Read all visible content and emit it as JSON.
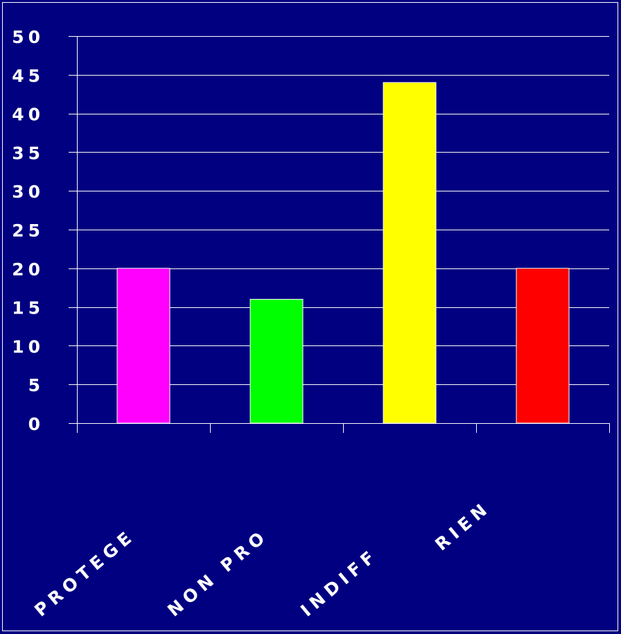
{
  "chart_data": {
    "type": "bar",
    "title": "",
    "xlabel": "",
    "ylabel": "",
    "categories": [
      "PROTEGE",
      "NON PRO",
      "INDIFF",
      "RIEN"
    ],
    "values": [
      20,
      16,
      44,
      20
    ],
    "colors": [
      "#ff00ff",
      "#00ff00",
      "#ffff00",
      "#ff0000"
    ],
    "ylim": [
      0,
      50
    ],
    "yticks": [
      0,
      5,
      10,
      15,
      20,
      25,
      30,
      35,
      40,
      45,
      50
    ],
    "grid": true,
    "legend": "none",
    "background": "#000080",
    "gridline_color": "#ffffff"
  }
}
